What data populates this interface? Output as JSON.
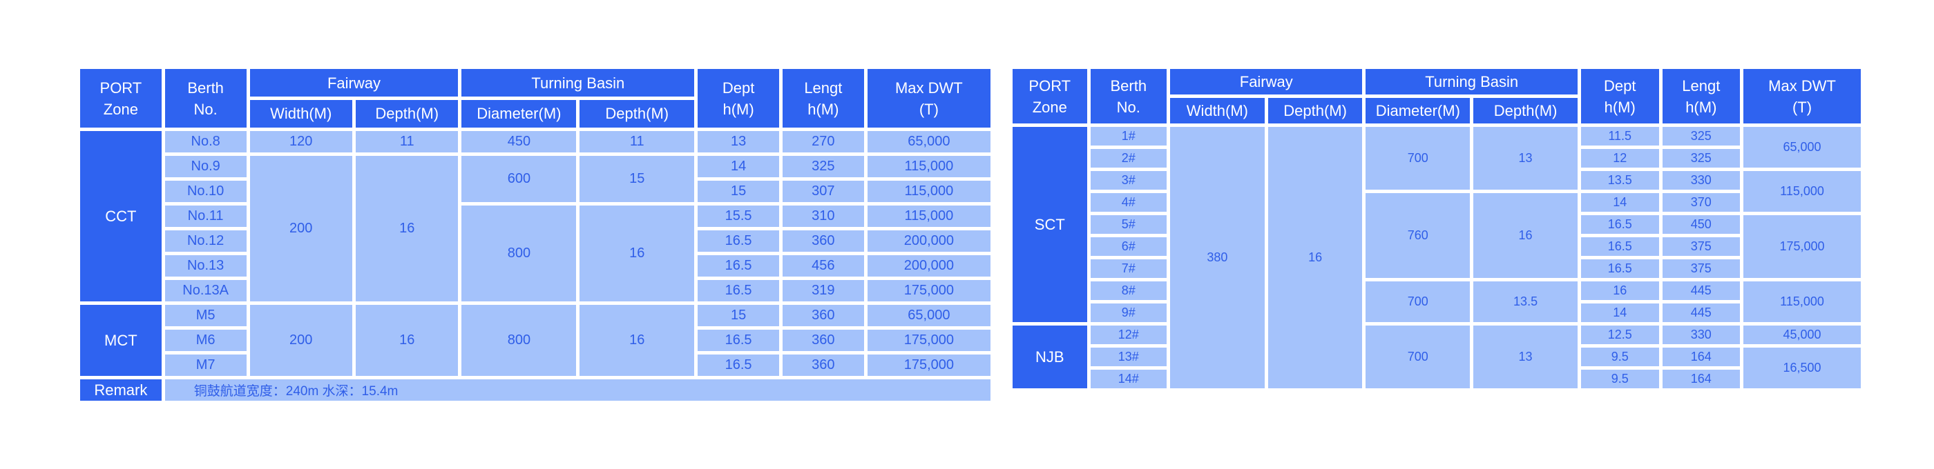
{
  "left": {
    "headers": {
      "port_zone": "PORT\nZone",
      "berth": "Berth\nNo.",
      "fairway": "Fairway",
      "fairway_width": "Width(M)",
      "fairway_depth": "Depth(M)",
      "basin": "Turning Basin",
      "basin_diameter": "Diameter(M)",
      "basin_depth": "Depth(M)",
      "dept": "Dept\nh(M)",
      "length": "Lengt\nh(M)",
      "dwt": "Max DWT\n(T)"
    },
    "zones": {
      "cct": "CCT",
      "mct": "MCT"
    },
    "berths": [
      "No.8",
      "No.9",
      "No.10",
      "No.11",
      "No.12",
      "No.13",
      "No.13A",
      "M5",
      "M6",
      "M7"
    ],
    "fairway_width": [
      "120",
      "200",
      "200"
    ],
    "fairway_depth": [
      "11",
      "16",
      "16"
    ],
    "basin_diameter": [
      "450",
      "600",
      "800",
      "800"
    ],
    "basin_depth": [
      "11",
      "15",
      "16",
      "16"
    ],
    "depth": [
      "13",
      "14",
      "15",
      "15.5",
      "16.5",
      "16.5",
      "16.5",
      "15",
      "16.5",
      "16.5"
    ],
    "length": [
      "270",
      "325",
      "307",
      "310",
      "360",
      "456",
      "319",
      "360",
      "360",
      "360"
    ],
    "dwt": [
      "65,000",
      "115,000",
      "115,000",
      "115,000",
      "200,000",
      "200,000",
      "175,000",
      "65,000",
      "175,000",
      "175,000"
    ],
    "remark_label": "Remark",
    "remark_text": "铜鼓航道宽度：240m  水深：15.4m"
  },
  "right": {
    "headers": {
      "port_zone": "PORT\nZone",
      "berth": "Berth\nNo.",
      "fairway": "Fairway",
      "fairway_width": "Width(M)",
      "fairway_depth": "Depth(M)",
      "basin": "Turning Basin",
      "basin_diameter": "Diameter(M)",
      "basin_depth": "Depth(M)",
      "dept": "Dept\nh(M)",
      "length": "Lengt\nh(M)",
      "dwt": "Max DWT\n(T)"
    },
    "zones": {
      "sct": "SCT",
      "njb": "NJB"
    },
    "berths": [
      "1#",
      "2#",
      "3#",
      "4#",
      "5#",
      "6#",
      "7#",
      "8#",
      "9#",
      "12#",
      "13#",
      "14#"
    ],
    "fairway_width": "380",
    "fairway_depth": "16",
    "basin_diameter": [
      "700",
      "760",
      "700",
      "700"
    ],
    "basin_depth": [
      "13",
      "16",
      "13.5",
      "13"
    ],
    "depth": [
      "11.5",
      "12",
      "13.5",
      "14",
      "16.5",
      "16.5",
      "16.5",
      "16",
      "14",
      "12.5",
      "9.5",
      "9.5"
    ],
    "length": [
      "325",
      "325",
      "330",
      "370",
      "450",
      "375",
      "375",
      "445",
      "445",
      "330",
      "164",
      "164"
    ],
    "dwt": [
      "65,000",
      "115,000",
      "175,000",
      "115,000",
      "45,000",
      "16,500"
    ]
  },
  "colors": {
    "header_blue": "#2f63f0",
    "cell_blue": "#a4c2fb",
    "cell_text": "#2f5ee8",
    "white": "#ffffff"
  }
}
